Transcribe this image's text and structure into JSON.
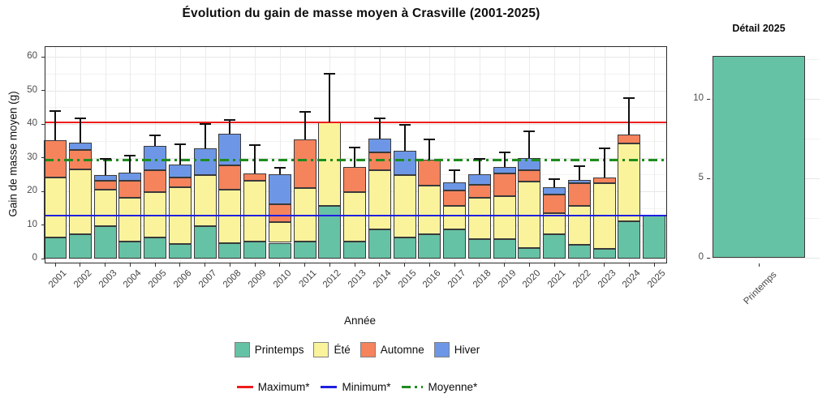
{
  "page_title": "Évolution du gain de masse moyen à Crasville (2001-2025)",
  "colors": {
    "printemps": "#66C2A5",
    "ete": "#FBF39B",
    "automne": "#F5835C",
    "hiver": "#6D97E6",
    "maximum_line": "#EE1C1C",
    "minimum_line": "#1F1FE0",
    "moyenne_line": "#1E8C1E"
  },
  "chart_data": [
    {
      "type": "bar",
      "stacked": true,
      "title": "Évolution du gain de masse moyen à Crasville (2001-2025)",
      "xlabel": "Année",
      "ylabel": "Gain de masse moyen (g)",
      "ylim": [
        0,
        63
      ],
      "yticks": [
        0,
        10,
        20,
        30,
        40,
        50,
        60
      ],
      "grid": true,
      "legend_position": "bottom",
      "categories": [
        "2001",
        "2002",
        "2003",
        "2004",
        "2005",
        "2006",
        "2007",
        "2008",
        "2009",
        "2010",
        "2011",
        "2012",
        "2013",
        "2014",
        "2015",
        "2016",
        "2017",
        "2018",
        "2019",
        "2020",
        "2021",
        "2022",
        "2023",
        "2024",
        "2025"
      ],
      "series": [
        {
          "name": "Printemps",
          "color": "#66C2A5",
          "values": [
            6.2,
            7.2,
            9.6,
            5.0,
            6.3,
            4.4,
            9.6,
            4.7,
            5.1,
            4.7,
            5.0,
            15.6,
            5.0,
            8.7,
            6.3,
            7.2,
            8.6,
            5.9,
            5.9,
            3.1,
            7.2,
            4.2,
            3.0,
            11.2,
            12.7
          ]
        },
        {
          "name": "Été",
          "color": "#FBF39B",
          "values": [
            17.9,
            19.3,
            10.8,
            13.1,
            13.5,
            16.8,
            15.2,
            15.8,
            18.1,
            6.1,
            16.0,
            25.0,
            14.7,
            17.7,
            18.5,
            14.4,
            7.0,
            12.1,
            12.7,
            19.7,
            6.4,
            11.4,
            19.4,
            23.1,
            0
          ]
        },
        {
          "name": "Automne",
          "color": "#F5835C",
          "values": [
            11.1,
            5.8,
            2.7,
            5.1,
            6.6,
            2.9,
            0,
            7.3,
            2.0,
            5.4,
            14.4,
            0,
            7.6,
            5.1,
            0,
            7.7,
            4.6,
            3.9,
            6.6,
            3.5,
            5.4,
            6.8,
            1.6,
            2.5,
            0
          ]
        },
        {
          "name": "Hiver",
          "color": "#6D97E6",
          "values": [
            0,
            2.1,
            1.7,
            2.4,
            7.0,
            3.8,
            8.1,
            9.3,
            0,
            8.9,
            0,
            0,
            0,
            4.3,
            7.3,
            0,
            2.5,
            3.2,
            2.1,
            3.7,
            2.2,
            0.9,
            0,
            0,
            0
          ]
        }
      ],
      "error_bar_tops": [
        44.0,
        41.8,
        29.6,
        30.6,
        36.7,
        34.0,
        40.0,
        41.3,
        33.7,
        27.1,
        43.6,
        54.9,
        33.1,
        41.6,
        39.9,
        35.5,
        26.4,
        29.6,
        31.7,
        37.9,
        23.7,
        27.5,
        32.7,
        47.8,
        null
      ],
      "reference_lines": [
        {
          "name": "Maximum*",
          "value": 40.6,
          "color": "#EE1C1C",
          "dash": "solid"
        },
        {
          "name": "Minimum*",
          "value": 12.8,
          "color": "#1F1FE0",
          "dash": "solid"
        },
        {
          "name": "Moyenne*",
          "value": 29.5,
          "color": "#1E8C1E",
          "dash": "dotdash"
        }
      ]
    },
    {
      "type": "bar",
      "title": "Détail 2025",
      "xlabel": "",
      "ylabel": "",
      "ylim": [
        0,
        13.8
      ],
      "yticks": [
        0,
        5,
        10
      ],
      "grid": true,
      "categories": [
        "Printemps"
      ],
      "series": [
        {
          "name": "Printemps",
          "color": "#66C2A5",
          "values": [
            12.7
          ]
        }
      ]
    }
  ]
}
